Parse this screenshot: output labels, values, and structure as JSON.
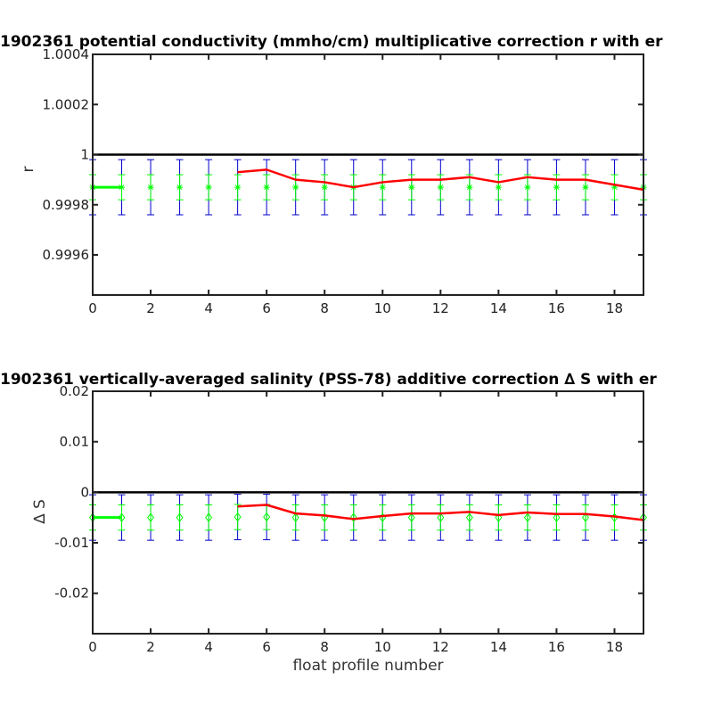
{
  "chart_data": [
    {
      "type": "line",
      "title": "1902361 potential conductivity (mmho/cm) multiplicative correction r with er",
      "xlabel": "",
      "ylabel": "r",
      "xlim": [
        0,
        19
      ],
      "ylim": [
        0.99944,
        1.0004
      ],
      "xticks": [
        0,
        2,
        4,
        6,
        8,
        10,
        12,
        14,
        16,
        18
      ],
      "xtick_labels": [
        "0",
        "2",
        "4",
        "6",
        "8",
        "10",
        "12",
        "14",
        "16",
        "18"
      ],
      "yticks": [
        0.9996,
        0.9998,
        1.0,
        1.0002,
        1.0004
      ],
      "ytick_labels": [
        "0.9996",
        "0.9998",
        "1",
        "1.0002",
        "1.0004"
      ],
      "reference_line": 1.0,
      "marker": "asterisk",
      "colors": {
        "reference": "#000000",
        "correction": "#ff0000",
        "points": "#00ff00",
        "error_outer": "#0000cc"
      },
      "x": [
        0,
        1,
        2,
        3,
        4,
        5,
        6,
        7,
        8,
        9,
        10,
        11,
        12,
        13,
        14,
        15,
        16,
        17,
        18,
        19
      ],
      "series": [
        {
          "values": [
            0.99987,
            0.99987,
            0.99987,
            0.99987,
            0.99987,
            0.99987,
            0.99987,
            0.99987,
            0.99987,
            0.99987,
            0.99987,
            0.99987,
            0.99987,
            0.99987,
            0.99987,
            0.99987,
            0.99987,
            0.99987,
            0.99987,
            0.99987
          ],
          "inner_error": 5e-05,
          "outer_error": 0.00011
        },
        {
          "x": [
            5,
            6,
            7,
            8,
            9,
            10,
            11,
            12,
            13,
            14,
            15,
            16,
            17,
            18,
            19
          ],
          "values": [
            0.99993,
            0.99994,
            0.9999,
            0.99989,
            0.99987,
            0.99989,
            0.9999,
            0.9999,
            0.99991,
            0.99989,
            0.99991,
            0.9999,
            0.9999,
            0.99988,
            0.99986
          ]
        }
      ],
      "initial_segment": [
        0,
        1
      ]
    },
    {
      "type": "line",
      "title": "1902361 vertically-averaged salinity (PSS-78) additive correction ∆ S with er",
      "xlabel": "float profile number",
      "ylabel": "∆ S",
      "xlim": [
        0,
        19
      ],
      "ylim": [
        -0.028,
        0.02
      ],
      "xticks": [
        0,
        2,
        4,
        6,
        8,
        10,
        12,
        14,
        16,
        18
      ],
      "xtick_labels": [
        "0",
        "2",
        "4",
        "6",
        "8",
        "10",
        "12",
        "14",
        "16",
        "18"
      ],
      "yticks": [
        -0.02,
        -0.01,
        0,
        0.01,
        0.02
      ],
      "ytick_labels": [
        "-0.02",
        "-0.01",
        "0",
        "0.01",
        "0.02"
      ],
      "reference_line": 0,
      "marker": "diamond",
      "colors": {
        "reference": "#000000",
        "correction": "#ff0000",
        "points": "#00ff00",
        "error_outer": "#0000cc"
      },
      "x": [
        0,
        1,
        2,
        3,
        4,
        5,
        6,
        7,
        8,
        9,
        10,
        11,
        12,
        13,
        14,
        15,
        16,
        17,
        18,
        19
      ],
      "series": [
        {
          "values": [
            -0.005,
            -0.005,
            -0.005,
            -0.005,
            -0.005,
            -0.0049,
            -0.0049,
            -0.005,
            -0.005,
            -0.005,
            -0.005,
            -0.005,
            -0.005,
            -0.005,
            -0.005,
            -0.005,
            -0.005,
            -0.005,
            -0.005,
            -0.005
          ],
          "inner_error": 0.0025,
          "outer_error": 0.0045
        },
        {
          "x": [
            5,
            6,
            7,
            8,
            9,
            10,
            11,
            12,
            13,
            14,
            15,
            16,
            17,
            18,
            19
          ],
          "values": [
            -0.0028,
            -0.0025,
            -0.0042,
            -0.0046,
            -0.0053,
            -0.0047,
            -0.0042,
            -0.0042,
            -0.0039,
            -0.0045,
            -0.004,
            -0.0043,
            -0.0043,
            -0.0048,
            -0.0055
          ]
        }
      ],
      "initial_segment": [
        0,
        1
      ]
    }
  ]
}
